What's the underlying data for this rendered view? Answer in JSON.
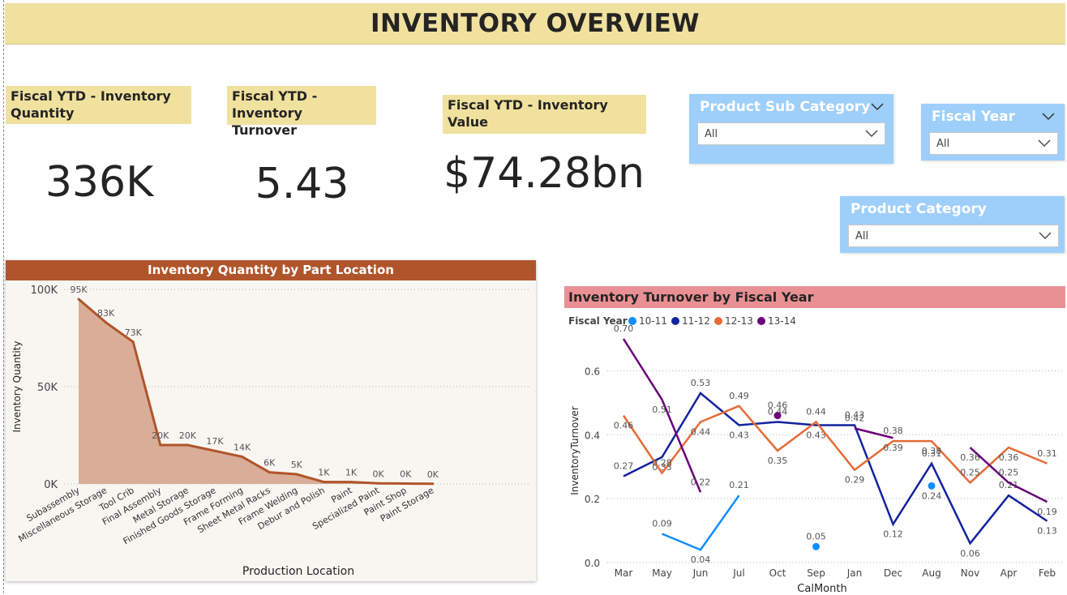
{
  "header": {
    "title": "INVENTORY OVERVIEW"
  },
  "kpis": [
    {
      "label": "Fiscal YTD - Inventory Quantity",
      "value": "336K"
    },
    {
      "label": "Fiscal YTD - Inventory Turnover",
      "value": "5.43"
    },
    {
      "label": "Fiscal YTD - Inventory Value",
      "value": "$74.28bn"
    }
  ],
  "slicers": {
    "sub_category": {
      "title": "Product Sub Category",
      "value": "All"
    },
    "fiscal_year": {
      "title": "Fiscal Year",
      "value": "All"
    },
    "category": {
      "title": "Product Category",
      "value": "All"
    }
  },
  "colors": {
    "title_bg": "#f0e19f",
    "slicer_bg": "#9ecffb",
    "area_line": "#b0552b",
    "area_fill": "#d9ad98",
    "turnover_head": "#e99094",
    "fy_10_11": "#118dff",
    "fy_11_12": "#12239e",
    "fy_12_13": "#e66c37",
    "fy_13_14": "#6b007b"
  },
  "chart_data": [
    {
      "type": "area",
      "title": "Inventory Quantity by Part Location",
      "xlabel": "Production Location",
      "ylabel": "Inventory Quantity",
      "ylim": [
        0,
        100000
      ],
      "yticks": [
        "0K",
        "50K",
        "100K"
      ],
      "categories": [
        "Subassembly",
        "Miscellaneous Storage",
        "Tool Crib",
        "Final Assembly",
        "Metal Storage",
        "Finished Goods Storage",
        "Frame Forming",
        "Sheet Metal Racks",
        "Frame Welding",
        "Debur and Polish",
        "Paint",
        "Specialized Paint",
        "Paint Shop",
        "Paint Storage"
      ],
      "values": [
        95000,
        83000,
        73000,
        20000,
        20000,
        17000,
        14000,
        6000,
        5000,
        1000,
        1000,
        300,
        200,
        100
      ],
      "data_labels": [
        "95K",
        "83K",
        "73K",
        "20K",
        "20K",
        "17K",
        "14K",
        "6K",
        "5K",
        "1K",
        "1K",
        "0K",
        "0K",
        "0K"
      ]
    },
    {
      "type": "line",
      "title": "Inventory Turnover by Fiscal Year",
      "legend_title": "Fiscal Year",
      "xlabel": "CalMonth",
      "ylabel": "InventoryTurnover",
      "ylim": [
        0,
        0.7
      ],
      "yticks": [
        "0.0",
        "0.2",
        "0.4",
        "0.6"
      ],
      "categories": [
        "Mar",
        "May",
        "Jun",
        "Jul",
        "Oct",
        "Sep",
        "Jan",
        "Dec",
        "Aug",
        "Nov",
        "Apr",
        "Feb"
      ],
      "series": [
        {
          "name": "10-11",
          "values": [
            null,
            0.09,
            0.04,
            0.21,
            null,
            0.05,
            null,
            null,
            0.24,
            null,
            null,
            null
          ]
        },
        {
          "name": "11-12",
          "values": [
            0.27,
            0.33,
            0.53,
            0.43,
            0.44,
            0.43,
            0.43,
            0.12,
            0.31,
            0.06,
            0.21,
            0.13
          ]
        },
        {
          "name": "12-13",
          "values": [
            0.46,
            0.28,
            0.44,
            0.49,
            0.35,
            0.44,
            0.29,
            0.38,
            0.38,
            0.25,
            0.36,
            0.31
          ]
        },
        {
          "name": "13-14",
          "values": [
            0.7,
            0.51,
            0.22,
            null,
            0.46,
            null,
            0.42,
            0.39,
            null,
            0.36,
            0.25,
            0.19
          ]
        }
      ]
    }
  ]
}
